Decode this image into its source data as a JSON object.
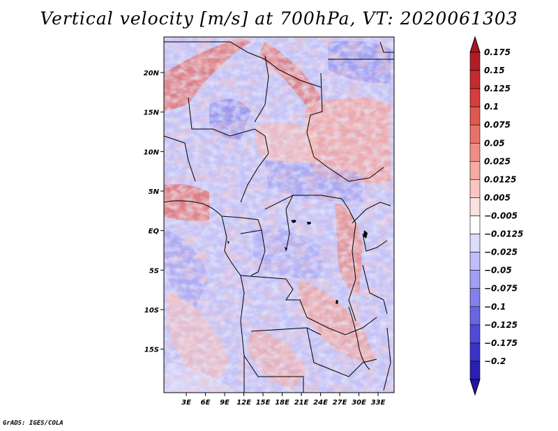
{
  "title": "Vertical velocity [m/s] at 700hPa, VT: 2020061303",
  "credit": "GrADS: IGES/COLA",
  "map": {
    "lon_range": [
      -0.5,
      35.5
    ],
    "lat_range": [
      -20.5,
      24.5
    ],
    "lat_ticks": [
      {
        "value": 20,
        "label": "20N"
      },
      {
        "value": 15,
        "label": "15N"
      },
      {
        "value": 10,
        "label": "10N"
      },
      {
        "value": 5,
        "label": "5N"
      },
      {
        "value": 0,
        "label": "EQ"
      },
      {
        "value": -5,
        "label": "5S"
      },
      {
        "value": -10,
        "label": "10S"
      },
      {
        "value": -15,
        "label": "15S"
      }
    ],
    "lon_ticks": [
      {
        "value": 3,
        "label": "3E"
      },
      {
        "value": 6,
        "label": "6E"
      },
      {
        "value": 9,
        "label": "9E"
      },
      {
        "value": 12,
        "label": "12E"
      },
      {
        "value": 15,
        "label": "15E"
      },
      {
        "value": 18,
        "label": "18E"
      },
      {
        "value": 21,
        "label": "21E"
      },
      {
        "value": 24,
        "label": "24E"
      },
      {
        "value": 27,
        "label": "27E"
      },
      {
        "value": 30,
        "label": "30E"
      },
      {
        "value": 33,
        "label": "33E"
      }
    ]
  },
  "colorbar": {
    "levels": [
      {
        "label": "0.175",
        "color": "#b11d27"
      },
      {
        "label": "0.15",
        "color": "#c42a30"
      },
      {
        "label": "0.125",
        "color": "#d63d3d"
      },
      {
        "label": "0.1",
        "color": "#e0574f"
      },
      {
        "label": "0.075",
        "color": "#e97167"
      },
      {
        "label": "0.05",
        "color": "#f08e86"
      },
      {
        "label": "0.025",
        "color": "#f5aaa4"
      },
      {
        "label": "0.0125",
        "color": "#f8c6c2"
      },
      {
        "label": "0.005",
        "color": "#fbe1df"
      },
      {
        "label": "−0.005",
        "color": "#ffffff"
      },
      {
        "label": "−0.0125",
        "color": "#dddcfa"
      },
      {
        "label": "−0.025",
        "color": "#c0befa"
      },
      {
        "label": "−0.05",
        "color": "#a19ff3"
      },
      {
        "label": "−0.075",
        "color": "#8381ec"
      },
      {
        "label": "−0.1",
        "color": "#6866e4"
      },
      {
        "label": "−0.125",
        "color": "#4f4bd8"
      },
      {
        "label": "−0.175",
        "color": "#3a33c8"
      },
      {
        "label": "−0.2",
        "color": "#2a1fb0"
      }
    ],
    "top_cap_color": "#a8181f",
    "bottom_cap_color": "#21179e"
  }
}
